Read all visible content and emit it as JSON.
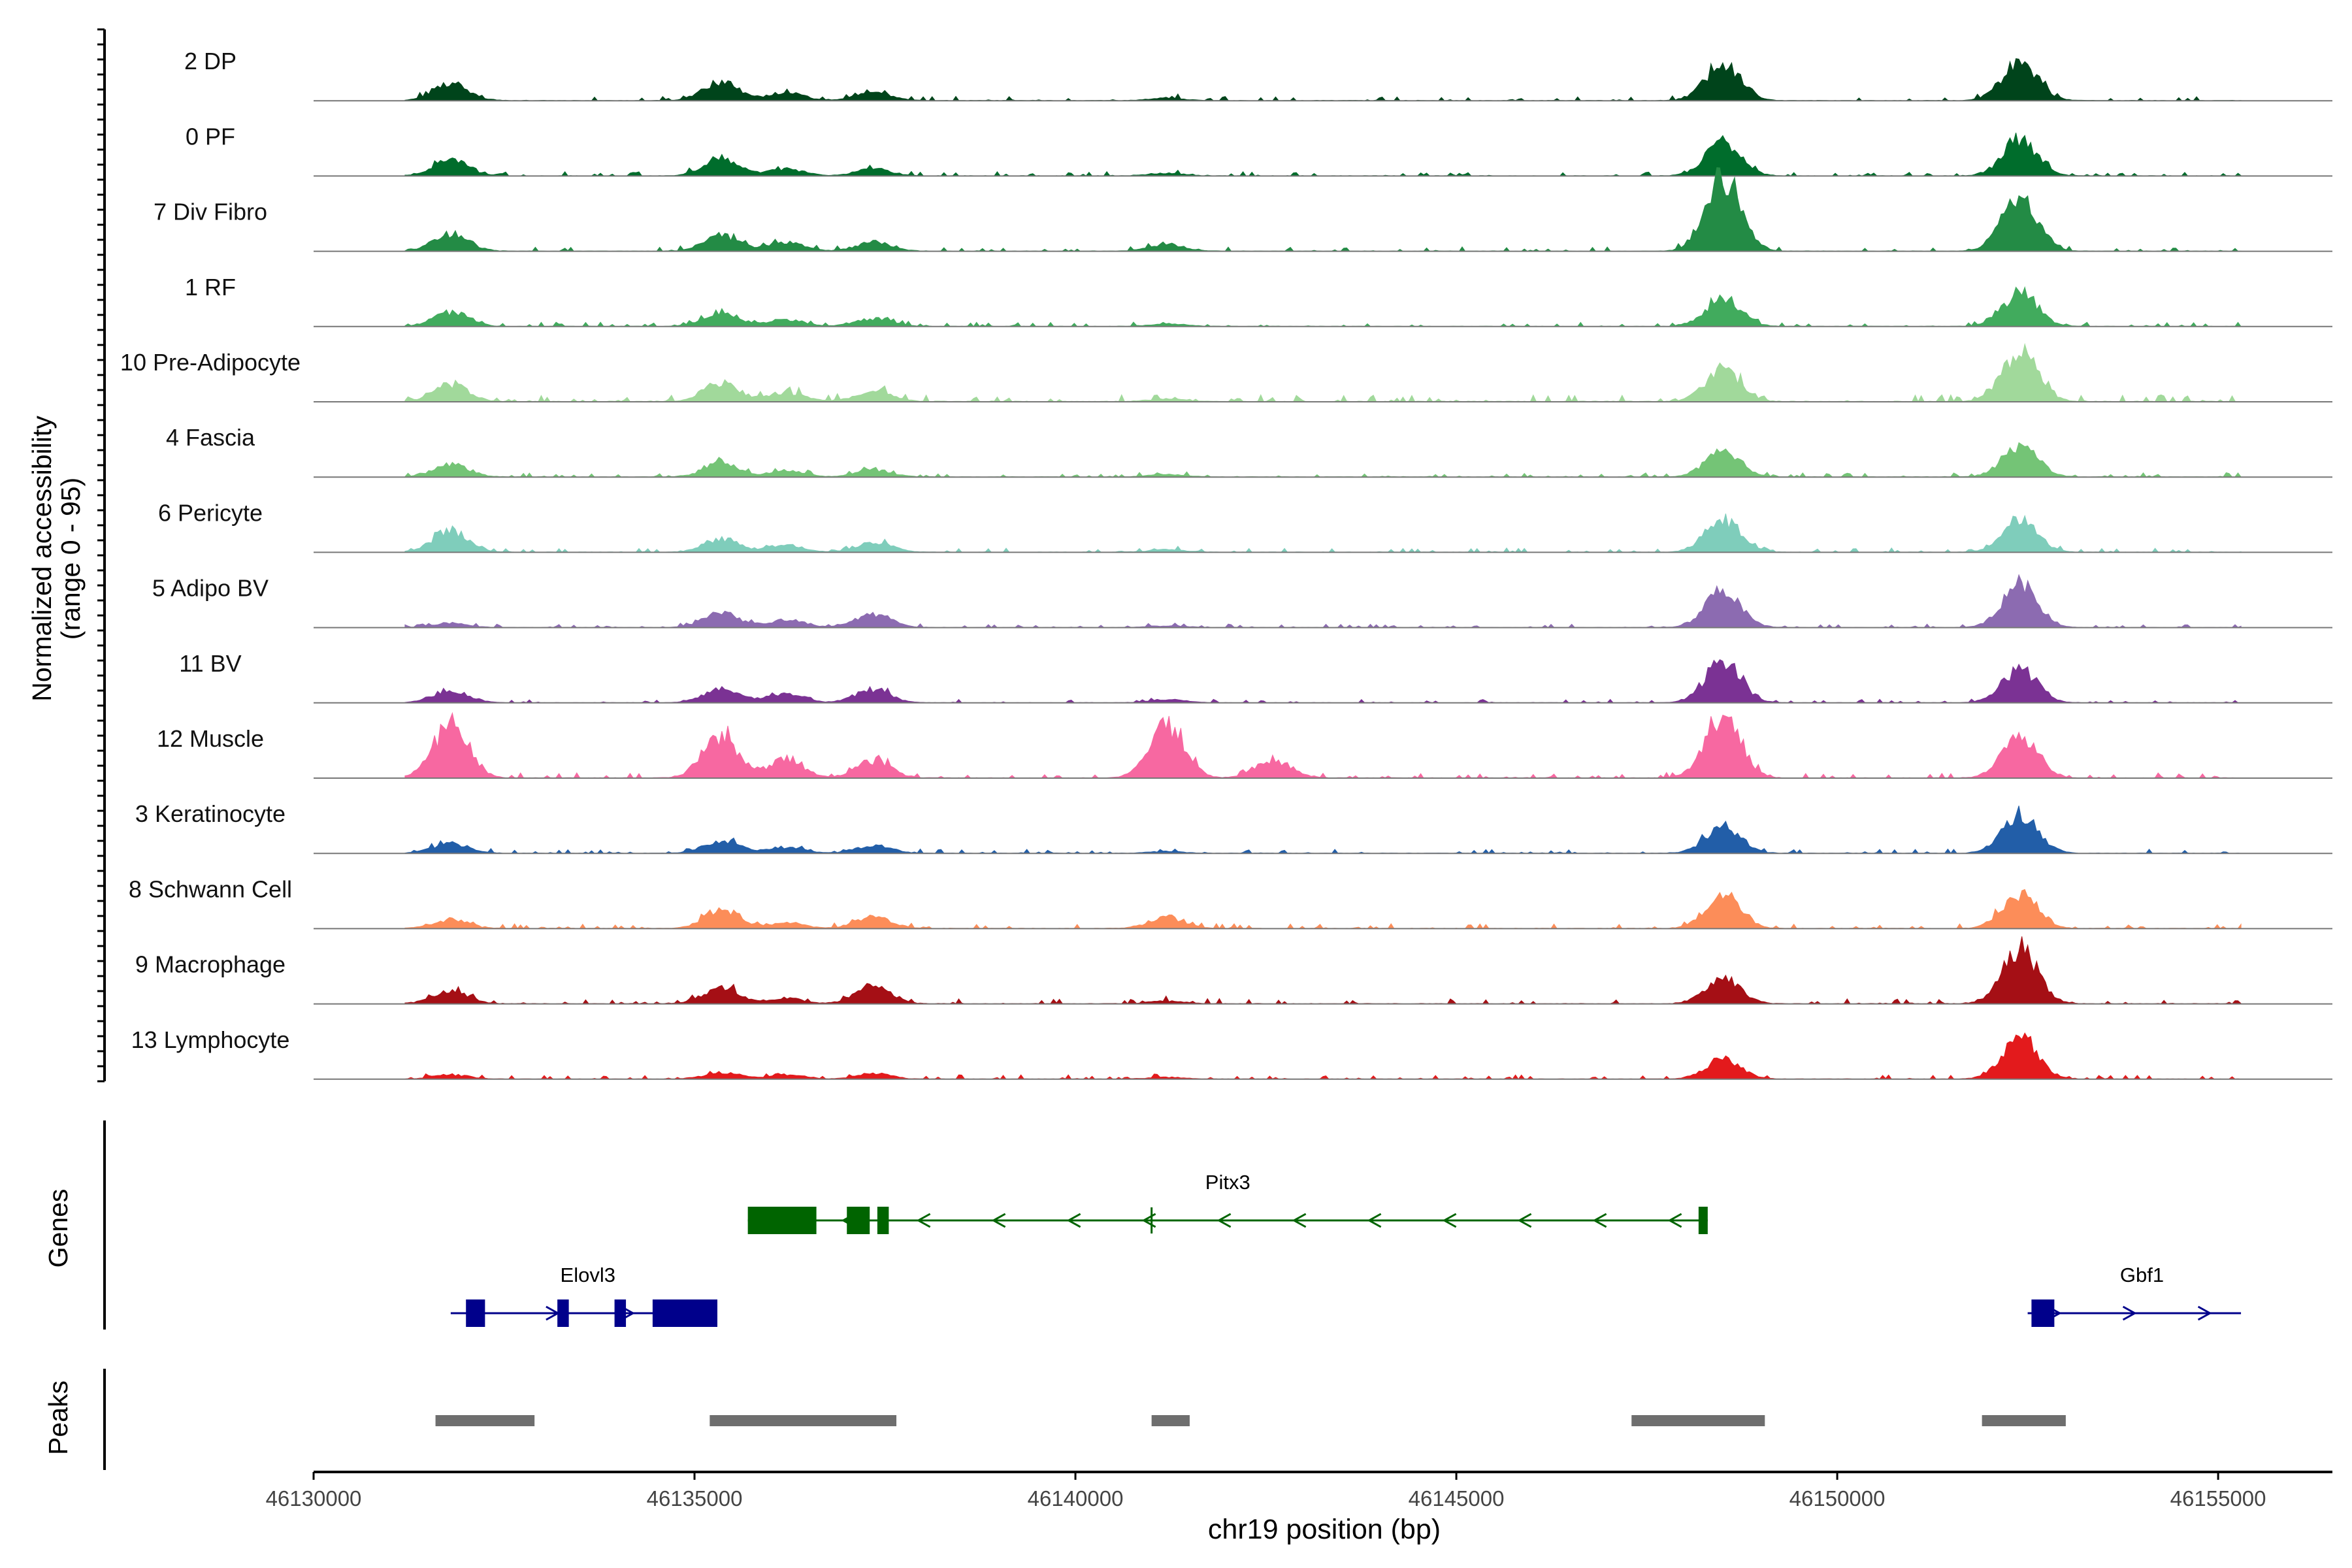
{
  "chart_data": {
    "type": "area",
    "chromosome": "chr19",
    "xlabel": "chr19 position (bp)",
    "ylabel": "Normalized accessibility",
    "ylabel_range": "(range 0 - 95)",
    "ylim": [
      0,
      95
    ],
    "xlim": [
      46130000,
      46156500
    ],
    "x_ticks": [
      46130000,
      46135000,
      46140000,
      46145000,
      46150000,
      46155000
    ],
    "x_tick_labels": [
      "46130000",
      "46135000",
      "46140000",
      "46145000",
      "46150000",
      "46155000"
    ],
    "panels": {
      "genes_label": "Genes",
      "peaks_label": "Peaks"
    },
    "peak_centers": [
      46131800,
      46135350,
      46136200,
      46137350,
      46141200,
      46148500,
      46152400
    ],
    "tracks": [
      {
        "name": "2 DP",
        "color": "#00441b",
        "profile": [
          [
            "b",
            0.05
          ],
          [
            46131800,
            0.38
          ],
          [
            46135350,
            0.42
          ],
          [
            46136200,
            0.18
          ],
          [
            46137350,
            0.18
          ],
          [
            46141200,
            0.06
          ],
          [
            46148500,
            0.85
          ],
          [
            46152400,
            0.85
          ]
        ]
      },
      {
        "name": "0 PF",
        "color": "#006d2c",
        "profile": [
          [
            "b",
            0.05
          ],
          [
            46131800,
            0.36
          ],
          [
            46135350,
            0.4
          ],
          [
            46136200,
            0.15
          ],
          [
            46137350,
            0.16
          ],
          [
            46141200,
            0.06
          ],
          [
            46148500,
            0.75
          ],
          [
            46152400,
            0.82
          ]
        ]
      },
      {
        "name": "7 Div Fibro",
        "color": "#238b45",
        "profile": [
          [
            "b",
            0.05
          ],
          [
            46131800,
            0.38
          ],
          [
            46135350,
            0.34
          ],
          [
            46136200,
            0.2
          ],
          [
            46137350,
            0.2
          ],
          [
            46141200,
            0.15
          ],
          [
            46148500,
            1.7
          ],
          [
            46152400,
            1.2
          ]
        ]
      },
      {
        "name": "1 RF",
        "color": "#41ab5d",
        "profile": [
          [
            "b",
            0.05
          ],
          [
            46131800,
            0.32
          ],
          [
            46135350,
            0.32
          ],
          [
            46136200,
            0.16
          ],
          [
            46137350,
            0.18
          ],
          [
            46141200,
            0.06
          ],
          [
            46148500,
            0.62
          ],
          [
            46152400,
            0.75
          ]
        ]
      },
      {
        "name": "10 Pre-Adipocyte",
        "color": "#a1d99b",
        "profile": [
          [
            "b",
            0.08
          ],
          [
            46131800,
            0.38
          ],
          [
            46135350,
            0.42
          ],
          [
            46136200,
            0.2
          ],
          [
            46137350,
            0.25
          ],
          [
            46141200,
            0.06
          ],
          [
            46148500,
            0.72
          ],
          [
            46152400,
            1.1
          ]
        ]
      },
      {
        "name": "4 Fascia",
        "color": "#74c476",
        "profile": [
          [
            "b",
            0.05
          ],
          [
            46131800,
            0.28
          ],
          [
            46135350,
            0.3
          ],
          [
            46136200,
            0.14
          ],
          [
            46137350,
            0.16
          ],
          [
            46141200,
            0.06
          ],
          [
            46148500,
            0.55
          ],
          [
            46152400,
            0.7
          ]
        ]
      },
      {
        "name": "6 Pericyte",
        "color": "#7fcdbb",
        "profile": [
          [
            "b",
            0.05
          ],
          [
            46131800,
            0.48
          ],
          [
            46135350,
            0.3
          ],
          [
            46136200,
            0.16
          ],
          [
            46137350,
            0.22
          ],
          [
            46141200,
            0.06
          ],
          [
            46148500,
            0.72
          ],
          [
            46152400,
            0.72
          ]
        ]
      },
      {
        "name": "5 Adipo BV",
        "color": "#8c6bb1",
        "profile": [
          [
            "b",
            0.04
          ],
          [
            46131800,
            0.1
          ],
          [
            46135350,
            0.34
          ],
          [
            46136200,
            0.18
          ],
          [
            46137350,
            0.3
          ],
          [
            46141200,
            0.04
          ],
          [
            46148500,
            0.85
          ],
          [
            46152400,
            1.0
          ]
        ]
      },
      {
        "name": "11 BV",
        "color": "#7b3294",
        "profile": [
          [
            "b",
            0.04
          ],
          [
            46131800,
            0.28
          ],
          [
            46135350,
            0.3
          ],
          [
            46136200,
            0.22
          ],
          [
            46137350,
            0.3
          ],
          [
            46141200,
            0.08
          ],
          [
            46148500,
            0.95
          ],
          [
            46152400,
            0.75
          ]
        ]
      },
      {
        "name": "12 Muscle",
        "color": "#f768a1",
        "profile": [
          [
            "b",
            0.06
          ],
          [
            46131800,
            1.2
          ],
          [
            46135350,
            0.95
          ],
          [
            46136200,
            0.4
          ],
          [
            46137350,
            0.38
          ],
          [
            46141200,
            1.2
          ],
          [
            46142600,
            0.4
          ],
          [
            46148500,
            1.4
          ],
          [
            46152400,
            1.0
          ]
        ]
      },
      {
        "name": "3 Keratinocyte",
        "color": "#225ea8",
        "profile": [
          [
            "b",
            0.05
          ],
          [
            46131800,
            0.22
          ],
          [
            46135350,
            0.28
          ],
          [
            46136200,
            0.14
          ],
          [
            46137350,
            0.18
          ],
          [
            46141200,
            0.04
          ],
          [
            46148500,
            0.6
          ],
          [
            46152400,
            0.88
          ]
        ]
      },
      {
        "name": "8 Schwann Cell",
        "color": "#fc8d59",
        "profile": [
          [
            "b",
            0.06
          ],
          [
            46131800,
            0.2
          ],
          [
            46135350,
            0.4
          ],
          [
            46136200,
            0.14
          ],
          [
            46137350,
            0.25
          ],
          [
            46141200,
            0.25
          ],
          [
            46148500,
            0.75
          ],
          [
            46152400,
            0.78
          ]
        ]
      },
      {
        "name": "9 Macrophage",
        "color": "#a50f15",
        "profile": [
          [
            "b",
            0.06
          ],
          [
            46131800,
            0.3
          ],
          [
            46135350,
            0.35
          ],
          [
            46136200,
            0.12
          ],
          [
            46137350,
            0.4
          ],
          [
            46141200,
            0.06
          ],
          [
            46148500,
            0.55
          ],
          [
            46152400,
            1.25
          ]
        ]
      },
      {
        "name": "13 Lymphocyte",
        "color": "#e31a1c",
        "profile": [
          [
            "b",
            0.05
          ],
          [
            46131800,
            0.1
          ],
          [
            46135350,
            0.14
          ],
          [
            46136200,
            0.1
          ],
          [
            46137350,
            0.12
          ],
          [
            46141200,
            0.04
          ],
          [
            46148500,
            0.45
          ],
          [
            46152400,
            0.9
          ]
        ]
      }
    ],
    "genes": [
      {
        "name": "Pitx3",
        "strand": "-",
        "color": "#006400",
        "row": 1,
        "start": 46135700,
        "end": 46148300,
        "exons": [
          [
            46135700,
            46136600
          ],
          [
            46137000,
            46137300
          ],
          [
            46137400,
            46137550
          ],
          [
            46148180,
            46148300
          ]
        ],
        "extra_marks": [
          46141000
        ]
      },
      {
        "name": "Elovl3",
        "strand": "+",
        "color": "#00008b",
        "row": 2,
        "start": 46131800,
        "end": 46135300,
        "exons": [
          [
            46132000,
            46132250
          ],
          [
            46133200,
            46133350
          ],
          [
            46133950,
            46134100
          ],
          [
            46134450,
            46135300
          ]
        ]
      },
      {
        "name": "Gbf1",
        "strand": "+",
        "color": "#00008b",
        "row": 2,
        "start": 46152500,
        "end": 46155300,
        "exons": [
          [
            46152550,
            46152850
          ]
        ]
      }
    ],
    "peaks": [
      [
        46131600,
        46132900
      ],
      [
        46135200,
        46137650
      ],
      [
        46141000,
        46141500
      ],
      [
        46147300,
        46149050
      ],
      [
        46151900,
        46153000
      ]
    ]
  }
}
